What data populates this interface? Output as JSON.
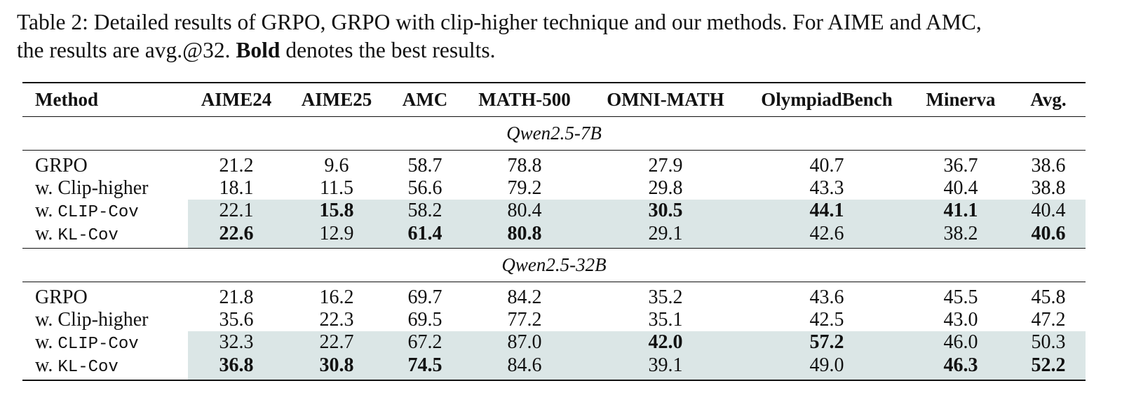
{
  "caption": {
    "line1": "Table 2: Detailed results of GRPO, GRPO with clip-higher technique and our methods. For AIME and AMC,",
    "line2_pre": "the results are avg.@32. ",
    "line2_bold": "Bold",
    "line2_post": " denotes the best results."
  },
  "columns": [
    "Method",
    "AIME24",
    "AIME25",
    "AMC",
    "MATH-500",
    "OMNI-MATH",
    "OlympiadBench",
    "Minerva",
    "Avg."
  ],
  "groups": [
    {
      "name": "Qwen2.5-7B",
      "rows": [
        {
          "prefix": "",
          "method": "GRPO",
          "mono": false,
          "shaded": false,
          "values": [
            "21.2",
            "9.6",
            "58.7",
            "78.8",
            "27.9",
            "40.7",
            "36.7",
            "38.6"
          ],
          "best": [
            false,
            false,
            false,
            false,
            false,
            false,
            false,
            false
          ]
        },
        {
          "prefix": "w. ",
          "method": "Clip-higher",
          "mono": false,
          "shaded": false,
          "values": [
            "18.1",
            "11.5",
            "56.6",
            "79.2",
            "29.8",
            "43.3",
            "40.4",
            "38.8"
          ],
          "best": [
            false,
            false,
            false,
            false,
            false,
            false,
            false,
            false
          ]
        },
        {
          "prefix": "w. ",
          "method": "CLIP-Cov",
          "mono": true,
          "shaded": true,
          "values": [
            "22.1",
            "15.8",
            "58.2",
            "80.4",
            "30.5",
            "44.1",
            "41.1",
            "40.4"
          ],
          "best": [
            false,
            true,
            false,
            false,
            true,
            true,
            true,
            false
          ]
        },
        {
          "prefix": "w. ",
          "method": "KL-Cov",
          "mono": true,
          "shaded": true,
          "values": [
            "22.6",
            "12.9",
            "61.4",
            "80.8",
            "29.1",
            "42.6",
            "38.2",
            "40.6"
          ],
          "best": [
            true,
            false,
            true,
            true,
            false,
            false,
            false,
            true
          ]
        }
      ]
    },
    {
      "name": "Qwen2.5-32B",
      "rows": [
        {
          "prefix": "",
          "method": "GRPO",
          "mono": false,
          "shaded": false,
          "values": [
            "21.8",
            "16.2",
            "69.7",
            "84.2",
            "35.2",
            "43.6",
            "45.5",
            "45.8"
          ],
          "best": [
            false,
            false,
            false,
            false,
            false,
            false,
            false,
            false
          ]
        },
        {
          "prefix": "w. ",
          "method": "Clip-higher",
          "mono": false,
          "shaded": false,
          "values": [
            "35.6",
            "22.3",
            "69.5",
            "77.2",
            "35.1",
            "42.5",
            "43.0",
            "47.2"
          ],
          "best": [
            false,
            false,
            false,
            false,
            false,
            false,
            false,
            false
          ]
        },
        {
          "prefix": "w. ",
          "method": "CLIP-Cov",
          "mono": true,
          "shaded": true,
          "values": [
            "32.3",
            "22.7",
            "67.2",
            "87.0",
            "42.0",
            "57.2",
            "46.0",
            "50.3"
          ],
          "best": [
            false,
            false,
            false,
            false,
            true,
            true,
            false,
            false
          ]
        },
        {
          "prefix": "w. ",
          "method": "KL-Cov",
          "mono": true,
          "shaded": true,
          "values": [
            "36.8",
            "30.8",
            "74.5",
            "84.6",
            "39.1",
            "49.0",
            "46.3",
            "52.2"
          ],
          "best": [
            true,
            true,
            true,
            false,
            false,
            false,
            true,
            true
          ]
        }
      ]
    }
  ],
  "colors": {
    "shade": "#dbe6e6",
    "text": "#111111",
    "rule": "#111111"
  }
}
